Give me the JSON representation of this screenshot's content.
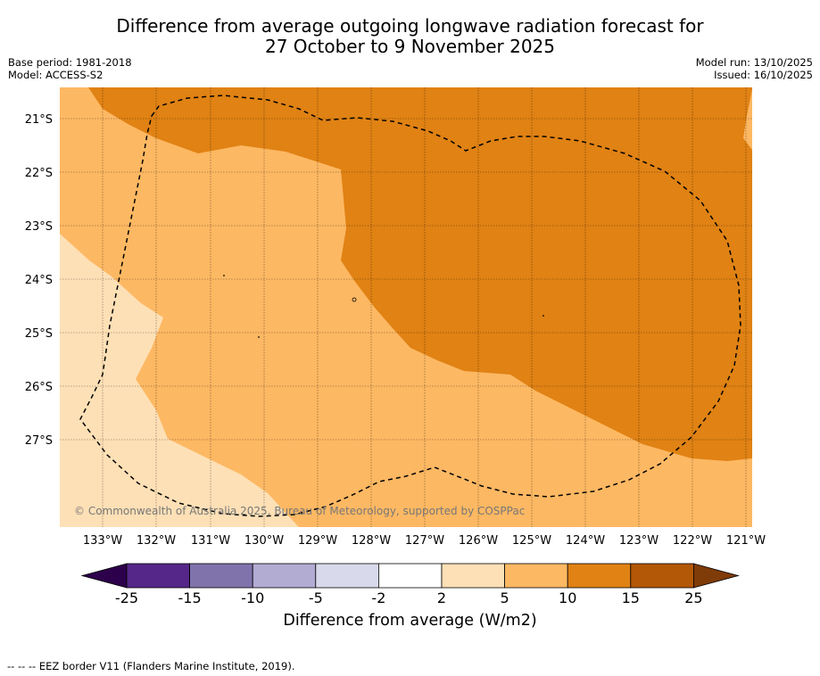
{
  "title_line1": "Difference from average outgoing longwave radiation forecast for",
  "title_line2": "27 October to 9 November 2025",
  "meta": {
    "base_period": "Base period: 1981-2018",
    "model": "Model: ACCESS-S2",
    "model_run": "Model run: 13/10/2025",
    "issued": "Issued: 16/10/2025"
  },
  "map": {
    "lat_labels": [
      "21°S",
      "22°S",
      "23°S",
      "24°S",
      "25°S",
      "26°S",
      "27°S"
    ],
    "lon_labels": [
      "133°W",
      "132°W",
      "131°W",
      "130°W",
      "129°W",
      "128°W",
      "127°W",
      "126°W",
      "125°W",
      "124°W",
      "123°W",
      "122°W",
      "121°W"
    ],
    "copyright": "© Commonwealth of Australia 2025, Bureau of Meteorology, supported by COSPPac"
  },
  "colorbar": {
    "title": "Difference from average (W/m2)",
    "ticks": [
      "-25",
      "-15",
      "-10",
      "-5",
      "-2",
      "2",
      "5",
      "10",
      "15",
      "25"
    ],
    "colors": {
      "under": "#2d004b",
      "bins": [
        "#542788",
        "#8073ac",
        "#b2abd2",
        "#d8daeb",
        "#ffffff",
        "#fee0b6",
        "#fdb863",
        "#e08214",
        "#b35806"
      ],
      "over": "#7f3b08"
    }
  },
  "legend_note": "--  --  -- EEZ border V11 (Flanders Marine Institute, 2019)."
}
